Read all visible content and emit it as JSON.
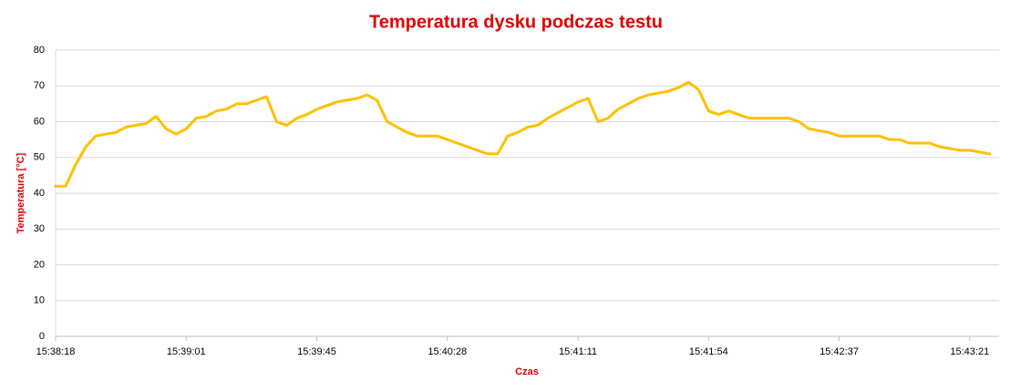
{
  "chart_data": {
    "type": "line",
    "title": "Temperatura dysku podczas testu",
    "x_label": "Czas",
    "y_label": "Temperatura [°C]",
    "categories": [
      "15:38:18",
      null,
      null,
      null,
      null,
      null,
      null,
      null,
      null,
      null,
      null,
      null,
      null,
      "15:39:01",
      null,
      null,
      null,
      null,
      null,
      null,
      null,
      null,
      null,
      null,
      null,
      null,
      "15:39:45",
      null,
      null,
      null,
      null,
      null,
      null,
      null,
      null,
      null,
      null,
      null,
      null,
      "15:40:28",
      null,
      null,
      null,
      null,
      null,
      null,
      null,
      null,
      null,
      null,
      null,
      null,
      "15:41:11",
      null,
      null,
      null,
      null,
      null,
      null,
      null,
      null,
      null,
      null,
      null,
      null,
      "15:41:54",
      null,
      null,
      null,
      null,
      null,
      null,
      null,
      null,
      null,
      null,
      null,
      null,
      "15:42:37",
      null,
      null,
      null,
      null,
      null,
      null,
      null,
      null,
      null,
      null,
      null,
      null,
      "15:43:21",
      null,
      null
    ],
    "series": [
      {
        "name": "Temperatura",
        "color": "#FFC000",
        "values": [
          42,
          42,
          48,
          53,
          56,
          56.5,
          57,
          58.5,
          59,
          59.5,
          61.5,
          58,
          56.5,
          58,
          61,
          61.5,
          63,
          63.5,
          65,
          65,
          66,
          67,
          60,
          59,
          61,
          62,
          63.5,
          64.5,
          65.5,
          66,
          66.5,
          67.5,
          66,
          60,
          58.5,
          57,
          56,
          56,
          56,
          55,
          54,
          53,
          52,
          51,
          51,
          56,
          57,
          58.5,
          59,
          61,
          62.5,
          64,
          65.5,
          66.5,
          60,
          61,
          63.5,
          65,
          66.5,
          67.5,
          68,
          68.5,
          69.5,
          71,
          69,
          63,
          62,
          63,
          62,
          61,
          61,
          61,
          61,
          61,
          60,
          58,
          57.5,
          57,
          56,
          56,
          56,
          56,
          56,
          55,
          55,
          54,
          54,
          54,
          53,
          52.5,
          52,
          52,
          51.5,
          51
        ]
      }
    ],
    "ylim": [
      0,
      80
    ],
    "yticks": [
      0,
      10,
      20,
      30,
      40,
      50,
      60,
      70,
      80
    ],
    "grid": true
  }
}
